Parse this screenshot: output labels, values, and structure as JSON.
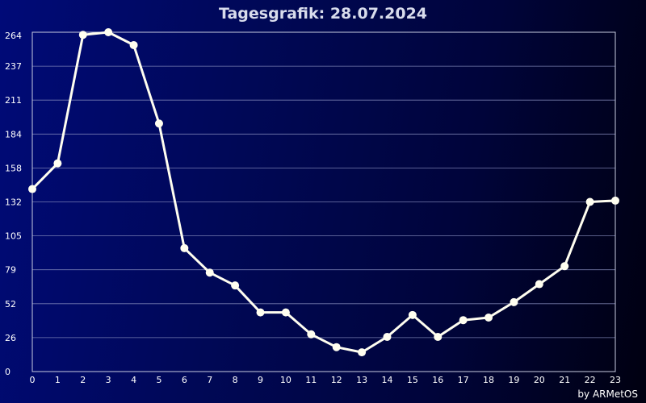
{
  "chart_data": {
    "type": "line",
    "title": "Tagesgrafik: 28.07.2024",
    "credit": "by ARMetOS",
    "x": [
      0,
      1,
      2,
      3,
      4,
      5,
      6,
      7,
      8,
      9,
      10,
      11,
      12,
      13,
      14,
      15,
      16,
      17,
      18,
      19,
      20,
      21,
      22,
      23
    ],
    "y_ticks": [
      "0",
      "26",
      "52",
      "79",
      "105",
      "132",
      "158",
      "184",
      "211",
      "237",
      "264"
    ],
    "y_tick_values": [
      0,
      26.4,
      52.8,
      79.2,
      105.6,
      132,
      158.4,
      184.8,
      211.2,
      237.6,
      264
    ],
    "ylim": [
      0,
      264
    ],
    "xlim": [
      0,
      23
    ],
    "grid": true,
    "series": [
      {
        "values": [
          142,
          162,
          262,
          264,
          254,
          193,
          96,
          77,
          67,
          46,
          46,
          29,
          19,
          15,
          27,
          44,
          27,
          40,
          42,
          54,
          68,
          82,
          132,
          133
        ]
      }
    ],
    "colors": {
      "line": "#fffef0",
      "grid": "#8a90c0"
    }
  }
}
